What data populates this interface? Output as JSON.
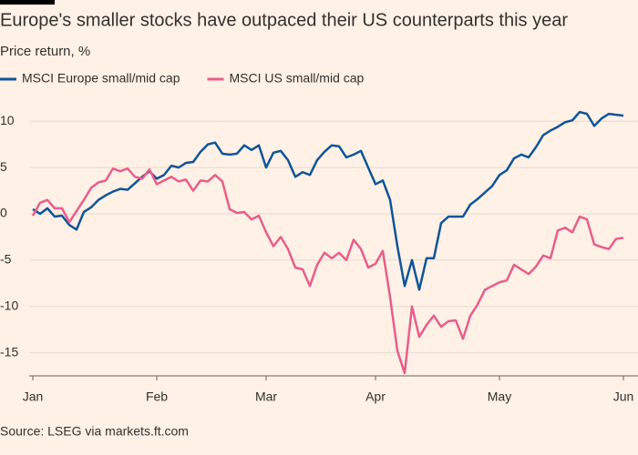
{
  "chart_data": {
    "type": "line",
    "title": "Europe's smaller stocks have outpaced their US counterparts this year",
    "subtitle": "Price return, %",
    "source": "Source: LSEG via markets.ft.com",
    "categories": [
      "Jan",
      null,
      null,
      null,
      null,
      null,
      null,
      null,
      null,
      null,
      null,
      null,
      null,
      null,
      null,
      null,
      null,
      "Feb",
      null,
      null,
      null,
      null,
      null,
      null,
      null,
      null,
      null,
      null,
      null,
      null,
      null,
      null,
      "Mar",
      null,
      null,
      null,
      null,
      null,
      null,
      null,
      null,
      null,
      null,
      null,
      null,
      null,
      null,
      "Apr",
      null,
      null,
      null,
      null,
      null,
      null,
      null,
      null,
      null,
      null,
      null,
      null,
      null,
      null,
      null,
      null,
      "May",
      null,
      null,
      null,
      null,
      null,
      null,
      null,
      null,
      null,
      null,
      null,
      null,
      null,
      null,
      null,
      null,
      "Jun"
    ],
    "series": [
      {
        "name": "MSCI Europe small/mid cap",
        "color": "#0f5499",
        "values": [
          0.5,
          0,
          0.6,
          -0.3,
          -0.2,
          -1.2,
          -1.7,
          0.2,
          0.7,
          1.5,
          2.0,
          2.4,
          2.7,
          2.6,
          3.3,
          4.0,
          4.6,
          3.8,
          4.2,
          5.2,
          5.0,
          5.5,
          5.6,
          6.7,
          7.5,
          7.7,
          6.5,
          6.4,
          6.5,
          7.4,
          6.9,
          7.4,
          5.0,
          6.6,
          6.8,
          5.8,
          4.0,
          4.5,
          4.2,
          5.8,
          6.7,
          7.4,
          7.3,
          6.1,
          6.4,
          6.8,
          5.0,
          3.2,
          3.6,
          1.5,
          -3.5,
          -7.8,
          -5,
          -8.2,
          -4.8,
          -4.8,
          -1.0,
          -0.3,
          -0.3,
          -0.3,
          1.0,
          1.6,
          2.3,
          3.0,
          4.2,
          4.7,
          6.0,
          6.4,
          6.1,
          7.2,
          8.5,
          9.0,
          9.4,
          9.9,
          10.1,
          11.0,
          10.8,
          9.5,
          10.3,
          10.8,
          10.7,
          10.6
        ]
      },
      {
        "name": "MSCI US small/mid cap",
        "color": "#e95d8c",
        "values": [
          -0.2,
          1.2,
          1.5,
          0.6,
          0.6,
          -0.9,
          0.3,
          1.5,
          2.8,
          3.4,
          3.6,
          4.9,
          4.6,
          4.9,
          4.0,
          3.8,
          4.8,
          3.2,
          3.6,
          4.0,
          3.5,
          3.7,
          2.5,
          3.6,
          3.5,
          4.2,
          3.5,
          0.5,
          0.1,
          0.2,
          -0.6,
          -0.2,
          -2.0,
          -3.5,
          -2.5,
          -3.8,
          -5.8,
          -6.0,
          -7.8,
          -5.5,
          -4.2,
          -4.8,
          -4.2,
          -5.0,
          -2.8,
          -3.8,
          -5.8,
          -5.4,
          -4.0,
          -9,
          -14.8,
          -17.2,
          -10.0,
          -13.3,
          -12.0,
          -11.0,
          -12.2,
          -11.6,
          -11.5,
          -13.5,
          -11.0,
          -9.8,
          -8.2,
          -7.8,
          -7.4,
          -7.2,
          -5.5,
          -6.0,
          -6.5,
          -5.7,
          -4.5,
          -4.8,
          -1.8,
          -1.5,
          -2.0,
          -0.3,
          -0.6,
          -3.3,
          -3.6,
          -3.8,
          -2.7,
          -2.6
        ]
      }
    ],
    "ylim": [
      -17.5,
      11.5
    ],
    "yticks": [
      -15,
      -10,
      -5,
      0,
      5,
      10
    ],
    "grid": true
  }
}
